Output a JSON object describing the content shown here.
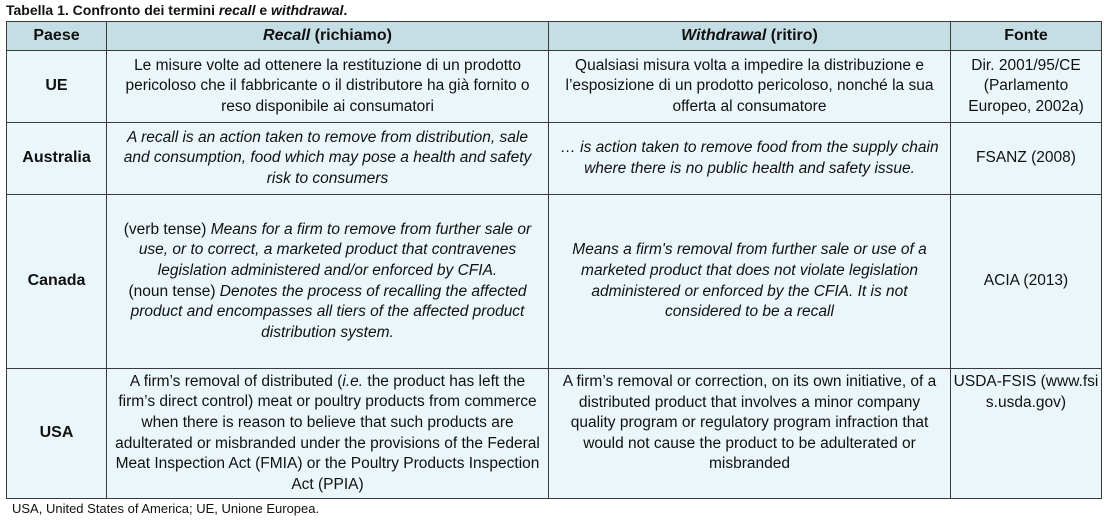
{
  "caption": {
    "prefix": "Tabella 1. Confronto dei termini ",
    "term1": "recall",
    "mid": " e ",
    "term2": "withdrawal",
    "suffix": "."
  },
  "headers": {
    "paese": "Paese",
    "recall_term": "Recall",
    "recall_trans": " (richiamo)",
    "withdrawal_term": "Withdrawal",
    "withdrawal_trans": " (ritiro)",
    "fonte": "Fonte"
  },
  "rows": {
    "ue": {
      "paese": "UE",
      "recall": "Le misure volte ad ottenere la restituzione di un prodotto pericoloso che il fabbricante o il distributore ha già fornito o reso disponibile ai consumatori",
      "withdrawal": "Qualsiasi misura volta a impedire la distribuzione e l’esposizione di un prodotto pericoloso, nonché la sua offerta al consumatore",
      "fonte": "Dir. 2001/95/CE (Parlamento Europeo, 2002a)"
    },
    "australia": {
      "paese": "Australia",
      "recall": "A recall is an action taken to remove from distribution, sale and consumption, food which may pose a health and safety risk to consumers",
      "withdrawal": "… is action taken to remove food from the supply chain where there is no public health and safety issue.",
      "fonte": "FSANZ (2008)"
    },
    "canada": {
      "paese": "Canada",
      "recall_verb_label": "(verb tense)",
      "recall_verb": " Means for a firm to remove from further sale or use, or to correct, a marketed product that contravenes legislation administered and/or enforced by CFIA.",
      "recall_noun_label": "(noun tense)",
      "recall_noun": " Denotes the process of recalling the affected product and encompasses all tiers of the affected product distribution system.",
      "withdrawal": "Means a firm's removal from further sale or use of a marketed product that does not violate legislation administered or enforced by the CFIA. It is not considered to be a recall",
      "fonte": "ACIA (2013)"
    },
    "usa": {
      "paese": "USA",
      "recall_a": "A firm’s removal of distributed (",
      "recall_ie": "i.e.",
      "recall_b": " the product has left the firm’s direct control) meat or poultry products from commerce when there is reason to believe that such products are adulterated or misbranded under the provisions of the Federal Meat Inspection Act (FMIA) or the Poultry Products Inspection Act (PPIA)",
      "withdrawal": "A firm’s removal or correction, on its own initiative, of a distributed product that involves a minor company quality program or regulatory program infraction that would not cause the product to be adulterated or misbranded",
      "fonte": "USDA-FSIS (www.fsis.usda.gov)"
    }
  },
  "footnote": "USA, United States of America; UE, Unione Europea."
}
